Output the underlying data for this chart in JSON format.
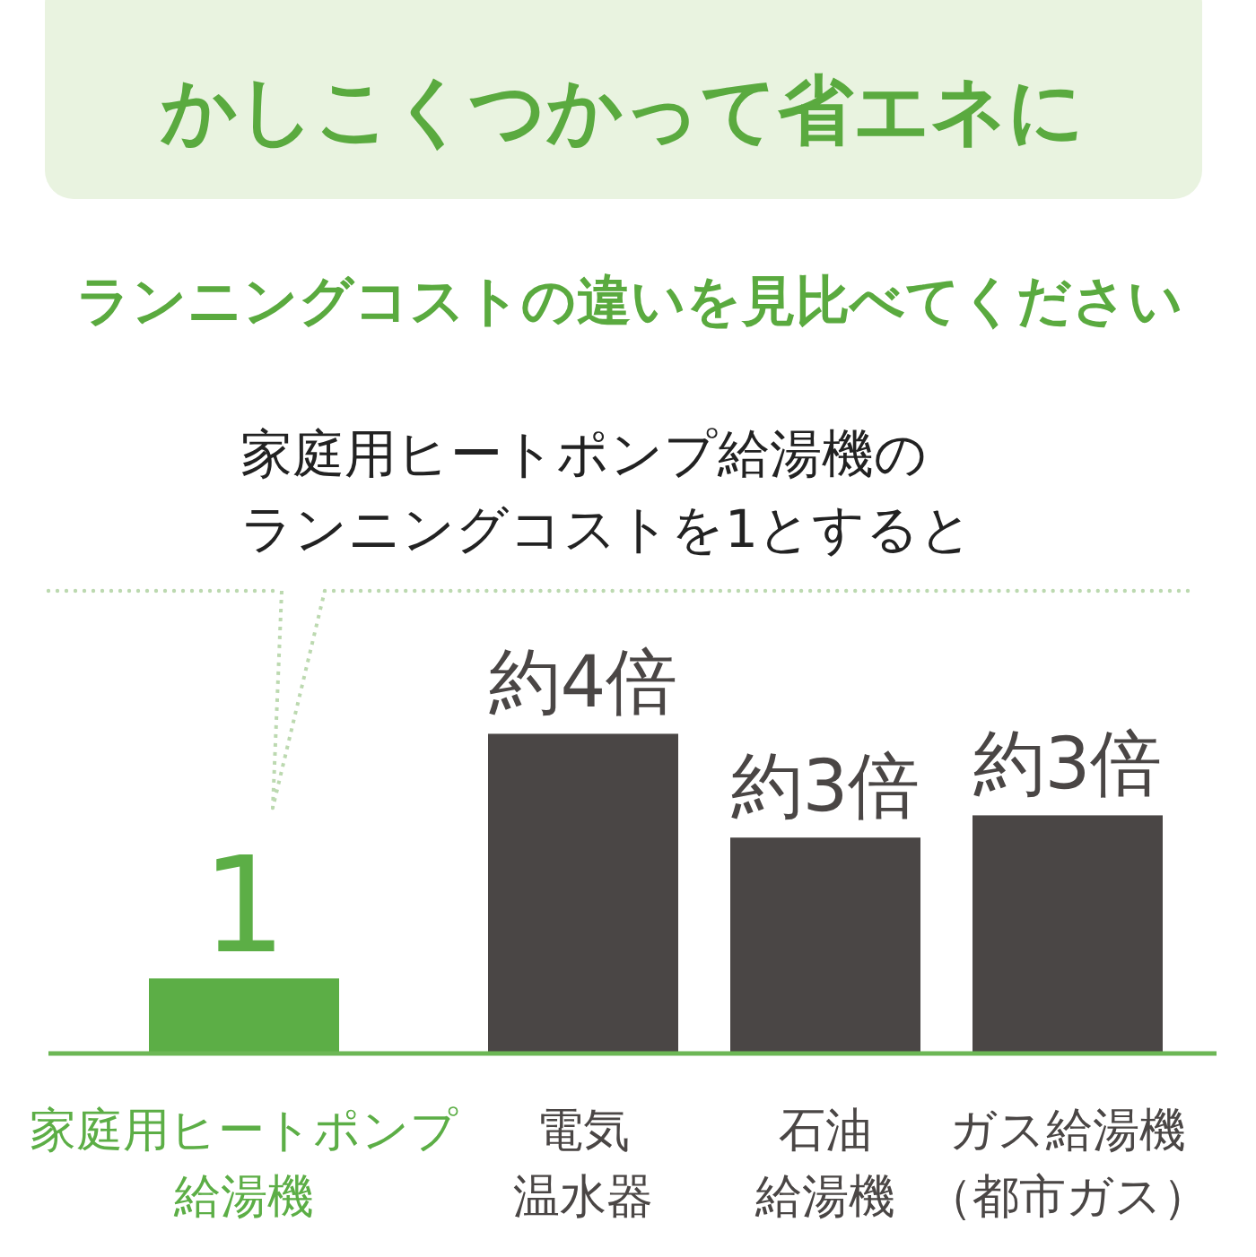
{
  "chart_data": {
    "type": "bar",
    "title": "かしこくつかって省エネに",
    "subtitle": "ランニングコストの違いを見比べてください",
    "annotations": [
      "家庭用ヒートポンプ給湯機のランニングコストを1とすると"
    ],
    "categories": [
      "家庭用ヒートポンプ給湯機",
      "電気温水器",
      "石油給湯機",
      "ガス給湯機（都市ガス）"
    ],
    "values": [
      1,
      4.3,
      2.9,
      3.2
    ],
    "colors": [
      "#5cae46",
      "#4a4645",
      "#4a4645",
      "#4a4645"
    ],
    "value_labels": [
      "1",
      "約4倍",
      "約3倍",
      "約3倍"
    ]
  }
}
